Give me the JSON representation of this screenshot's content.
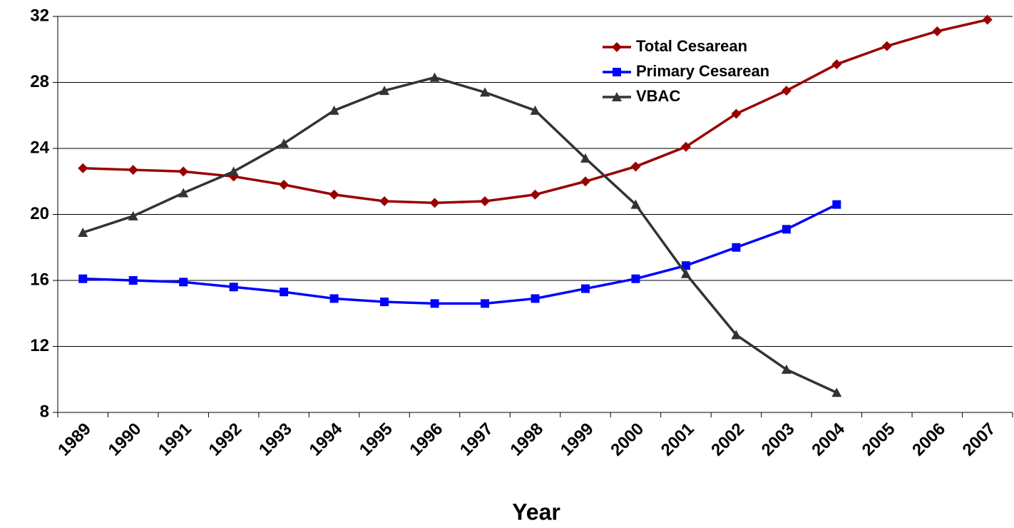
{
  "chart_data": {
    "type": "line",
    "x_label": "Year",
    "categories": [
      "1989",
      "1990",
      "1991",
      "1992",
      "1993",
      "1994",
      "1995",
      "1996",
      "1997",
      "1998",
      "1999",
      "2000",
      "2001",
      "2002",
      "2003",
      "2004",
      "2005",
      "2006",
      "2007"
    ],
    "series": [
      {
        "name": "Total Cesarean",
        "color": "#990000",
        "marker": "diamond",
        "values": [
          22.8,
          22.7,
          22.6,
          22.3,
          21.8,
          21.2,
          20.8,
          20.7,
          20.8,
          21.2,
          22.0,
          22.9,
          24.1,
          26.1,
          27.5,
          29.1,
          30.2,
          31.1,
          31.8
        ]
      },
      {
        "name": "Primary Cesarean",
        "color": "#0000ff",
        "marker": "square",
        "values": [
          16.1,
          16.0,
          15.9,
          15.6,
          15.3,
          14.9,
          14.7,
          14.6,
          14.6,
          14.9,
          15.5,
          16.1,
          16.9,
          18.0,
          19.1,
          20.6,
          null,
          null,
          null
        ]
      },
      {
        "name": "VBAC",
        "color": "#333333",
        "marker": "triangle",
        "values": [
          18.9,
          19.9,
          21.3,
          22.6,
          24.3,
          26.3,
          27.5,
          28.3,
          27.4,
          26.3,
          23.4,
          20.6,
          16.4,
          12.7,
          10.6,
          9.2,
          null,
          null,
          null
        ]
      }
    ],
    "ylim": [
      8,
      32
    ],
    "yticks": [
      8,
      12,
      16,
      20,
      24,
      28,
      32
    ],
    "grid": true,
    "legend": "upper right"
  }
}
